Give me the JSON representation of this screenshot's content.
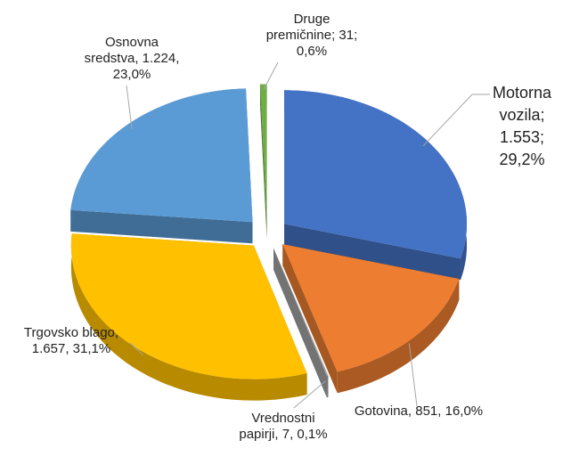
{
  "chart_data": {
    "type": "pie",
    "three_d": true,
    "exploded": true,
    "categories": [
      "Motorna vozila",
      "Gotovina",
      "Vrednostni papirji",
      "Trgovsko blago",
      "Osnovna sredstva",
      "Druge premičnine"
    ],
    "values": [
      1553,
      851,
      7,
      1657,
      1224,
      31
    ],
    "value_labels": [
      "1.553",
      "851",
      "7",
      "1.657",
      "1.224",
      "31"
    ],
    "percentages": [
      29.2,
      16.0,
      0.1,
      31.1,
      23.0,
      0.6
    ],
    "percentage_labels": [
      "29,2%",
      "16,0%",
      "0,1%",
      "31,1%",
      "23,0%",
      "0,6%"
    ],
    "separators": [
      ";",
      ",",
      ",",
      ",",
      ",",
      ";"
    ],
    "colors": [
      "#4472c4",
      "#ed7d31",
      "#a5a5a5",
      "#ffc000",
      "#5b9bd5",
      "#70ad47"
    ]
  }
}
